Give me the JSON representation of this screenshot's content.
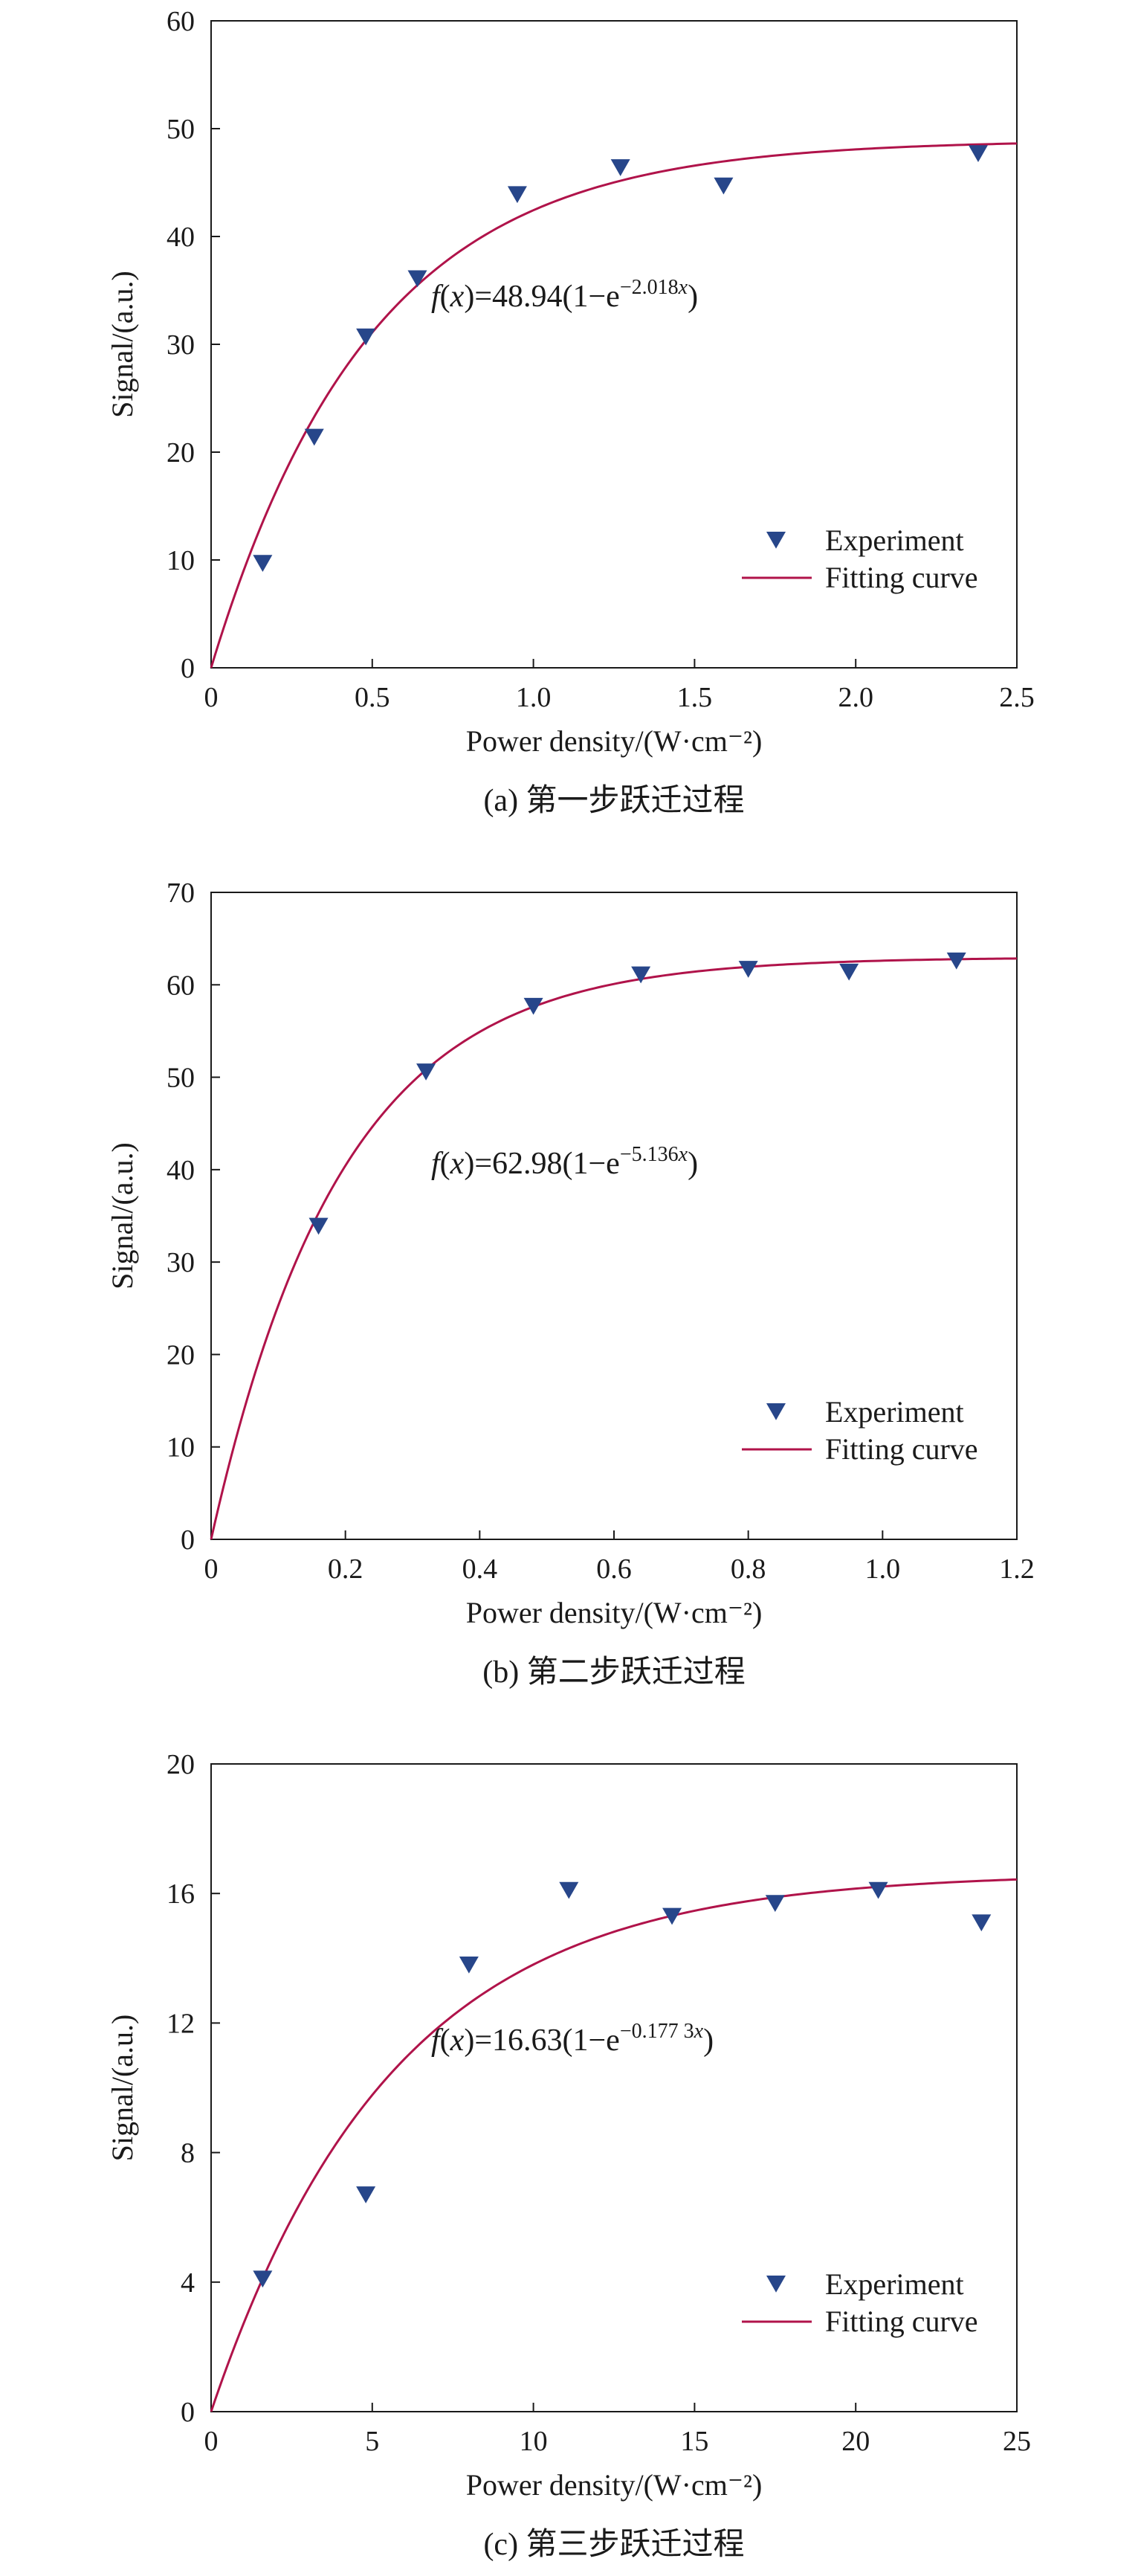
{
  "figure": {
    "panels": [
      {
        "caption": "(a) 第一步跃迁过程",
        "formula_prefix": "=48.94(1−e",
        "formula_exp": "−2.018"
      },
      {
        "caption": "(b) 第二步跃迁过程",
        "formula_prefix": "=62.98(1−e",
        "formula_exp": "−5.136"
      },
      {
        "caption": "(c) 第三步跃迁过程",
        "formula_prefix": "=16.63(1−e",
        "formula_exp": "−0.177 3"
      }
    ]
  },
  "chart_data": [
    {
      "type": "scatter",
      "xlabel": "Power density/(W·cm⁻²)",
      "ylabel": "Signal/(a.u.)",
      "xlim": [
        0,
        2.5
      ],
      "ylim": [
        0,
        60
      ],
      "xticks": [
        "0",
        "0.5",
        "1.0",
        "1.5",
        "2.0",
        "2.5"
      ],
      "yticks": [
        "0",
        "10",
        "20",
        "30",
        "40",
        "50",
        "60"
      ],
      "legend_position": "lower-right",
      "series": [
        {
          "name": "Experiment",
          "marker": "triangle-down",
          "color": "#27468a",
          "x": [
            0.16,
            0.32,
            0.48,
            0.64,
            0.95,
            1.27,
            1.59,
            2.38
          ],
          "y": [
            9.7,
            21.4,
            30.7,
            36.1,
            43.9,
            46.4,
            44.7,
            47.7
          ]
        },
        {
          "name": "Fitting curve",
          "type": "line",
          "color": "#b0134a",
          "formula": "f(x)=48.94(1−e^(−2.018x))",
          "amplitude": 48.94,
          "rate": 2.018,
          "x_range": [
            0,
            2.5
          ]
        }
      ]
    },
    {
      "type": "scatter",
      "xlabel": "Power density/(W·cm⁻²)",
      "ylabel": "Signal/(a.u.)",
      "xlim": [
        0,
        1.2
      ],
      "ylim": [
        0,
        70
      ],
      "xticks": [
        "0",
        "0.2",
        "0.4",
        "0.6",
        "0.8",
        "1.0",
        "1.2"
      ],
      "yticks": [
        "0",
        "10",
        "20",
        "30",
        "40",
        "50",
        "60",
        "70"
      ],
      "legend_position": "lower-right",
      "series": [
        {
          "name": "Experiment",
          "marker": "triangle-down",
          "color": "#27468a",
          "x": [
            0.16,
            0.32,
            0.48,
            0.64,
            0.8,
            0.95,
            1.11
          ],
          "y": [
            33.9,
            50.6,
            57.7,
            61.1,
            61.7,
            61.4,
            62.6
          ]
        },
        {
          "name": "Fitting curve",
          "type": "line",
          "color": "#b0134a",
          "formula": "f(x)=62.98(1−e^(−5.136x))",
          "amplitude": 62.98,
          "rate": 5.136,
          "x_range": [
            0,
            1.2
          ]
        }
      ]
    },
    {
      "type": "scatter",
      "xlabel": "Power density/(W·cm⁻²)",
      "ylabel": "Signal/(a.u.)",
      "xlim": [
        0,
        25
      ],
      "ylim": [
        0,
        20
      ],
      "xticks": [
        "0",
        "5",
        "10",
        "15",
        "20",
        "25"
      ],
      "yticks": [
        "0",
        "4",
        "8",
        "12",
        "16",
        "20"
      ],
      "legend_position": "lower-right",
      "series": [
        {
          "name": "Experiment",
          "marker": "triangle-down",
          "color": "#27468a",
          "x": [
            1.6,
            4.8,
            8.0,
            11.1,
            14.3,
            17.5,
            20.7,
            23.9
          ],
          "y": [
            4.1,
            6.7,
            13.8,
            16.1,
            15.3,
            15.7,
            16.1,
            15.1
          ]
        },
        {
          "name": "Fitting curve",
          "type": "line",
          "color": "#b0134a",
          "formula": "f(x)=16.63(1−e^(−0.1773x))",
          "amplitude": 16.63,
          "rate": 0.1773,
          "x_range": [
            0,
            25
          ]
        }
      ]
    }
  ]
}
